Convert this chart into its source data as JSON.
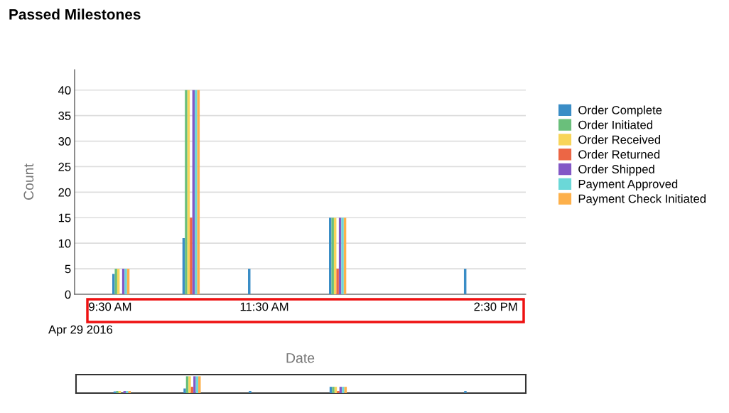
{
  "chart_data": {
    "type": "bar",
    "title": "Passed Milestones",
    "xlabel": "Date",
    "ylabel": "Count",
    "annotations": [
      "Apr 29 2016"
    ],
    "x": [
      9.64,
      10.55,
      11.4,
      12.45,
      14.2
    ],
    "xlim": [
      9.04,
      14.89
    ],
    "xticks": [
      {
        "value": 9.5,
        "label": "9:30 AM"
      },
      {
        "value": 11.5,
        "label": "11:30 AM"
      },
      {
        "value": 14.5,
        "label": "2:30 PM"
      }
    ],
    "ylim": [
      0,
      44
    ],
    "yticks": [
      0,
      5,
      10,
      15,
      20,
      25,
      30,
      35,
      40
    ],
    "grid": "y",
    "legend": "right",
    "series": [
      {
        "name": "Order Complete",
        "color": "#3a8dc6",
        "values": [
          4,
          11,
          5,
          15,
          5
        ]
      },
      {
        "name": "Order Initiated",
        "color": "#6abf7b",
        "values": [
          5,
          40,
          null,
          15,
          null
        ]
      },
      {
        "name": "Order Received",
        "color": "#f8d55a",
        "values": [
          5,
          40,
          null,
          15,
          null
        ]
      },
      {
        "name": "Order Returned",
        "color": "#ec6645",
        "values": [
          null,
          15,
          null,
          5,
          null
        ]
      },
      {
        "name": "Order Shipped",
        "color": "#8358c6",
        "values": [
          5,
          40,
          null,
          15,
          null
        ]
      },
      {
        "name": "Payment Approved",
        "color": "#6bd8d8",
        "values": [
          5,
          40,
          null,
          15,
          null
        ]
      },
      {
        "name": "Payment Check Initiated",
        "color": "#fdb04b",
        "values": [
          5,
          40,
          null,
          15,
          null
        ]
      }
    ]
  }
}
